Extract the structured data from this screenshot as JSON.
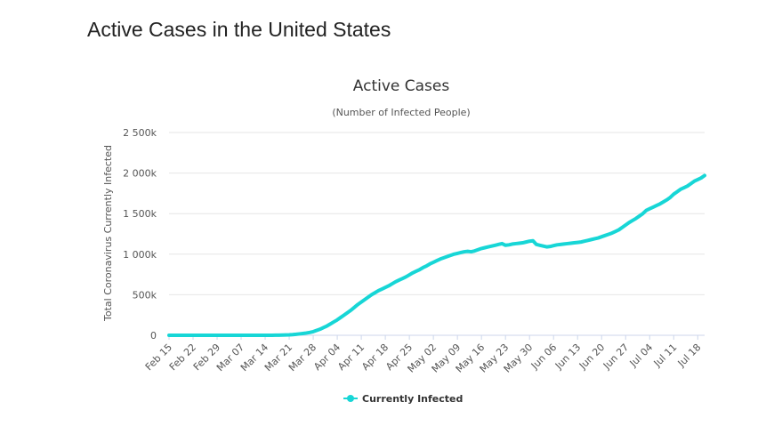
{
  "page": {
    "title": "Active Cases in the United States"
  },
  "chart_data": {
    "type": "line",
    "title": "Active Cases",
    "subtitle": "(Number of Infected People)",
    "ylabel": "Total Coronavirus Currently Infected",
    "xlabel": "",
    "ylim": [
      0,
      2500000
    ],
    "yticks": [
      0,
      500000,
      1000000,
      1500000,
      2000000,
      2500000
    ],
    "ytick_labels": [
      "0",
      "500k",
      "1 000k",
      "1 500k",
      "2 000k",
      "2 500k"
    ],
    "grid": true,
    "legend_position": "bottom-center",
    "x_start": "Feb 15",
    "x_end": "Jul 20",
    "xtick_labels": [
      "Feb 15",
      "Feb 22",
      "Feb 29",
      "Mar 07",
      "Mar 14",
      "Mar 21",
      "Mar 28",
      "Apr 04",
      "Apr 11",
      "Apr 18",
      "Apr 25",
      "May 02",
      "May 09",
      "May 16",
      "May 23",
      "May 30",
      "Jun 06",
      "Jun 13",
      "Jun 20",
      "Jun 27",
      "Jul 04",
      "Jul 11",
      "Jul 18"
    ],
    "series": [
      {
        "name": "Currently Infected",
        "color": "#17d6d6",
        "values": [
          0,
          0,
          0,
          0,
          0,
          0,
          0,
          0,
          0,
          0,
          0,
          0,
          0,
          0,
          0,
          0,
          0,
          0,
          0,
          0,
          0,
          0,
          0,
          0,
          0,
          0,
          0,
          0,
          0,
          0,
          0,
          1000,
          2000,
          3000,
          4000,
          5000,
          8000,
          12000,
          17000,
          22000,
          28000,
          35000,
          45000,
          60000,
          75000,
          95000,
          115000,
          140000,
          165000,
          190000,
          220000,
          250000,
          280000,
          310000,
          345000,
          380000,
          410000,
          440000,
          470000,
          500000,
          525000,
          550000,
          570000,
          590000,
          610000,
          635000,
          660000,
          680000,
          700000,
          720000,
          745000,
          770000,
          790000,
          810000,
          835000,
          855000,
          880000,
          900000,
          920000,
          940000,
          955000,
          970000,
          985000,
          1000000,
          1010000,
          1020000,
          1030000,
          1035000,
          1030000,
          1040000,
          1055000,
          1070000,
          1080000,
          1090000,
          1100000,
          1110000,
          1120000,
          1130000,
          1110000,
          1115000,
          1125000,
          1130000,
          1135000,
          1140000,
          1150000,
          1160000,
          1165000,
          1120000,
          1110000,
          1100000,
          1090000,
          1095000,
          1105000,
          1115000,
          1120000,
          1125000,
          1130000,
          1135000,
          1140000,
          1145000,
          1150000,
          1160000,
          1170000,
          1180000,
          1190000,
          1200000,
          1215000,
          1230000,
          1245000,
          1260000,
          1280000,
          1300000,
          1330000,
          1360000,
          1390000,
          1415000,
          1440000,
          1470000,
          1500000,
          1540000,
          1560000,
          1580000,
          1600000,
          1620000,
          1645000,
          1670000,
          1700000,
          1740000,
          1770000,
          1800000,
          1820000,
          1840000,
          1870000,
          1900000,
          1920000,
          1940000,
          1970000
        ]
      }
    ]
  }
}
